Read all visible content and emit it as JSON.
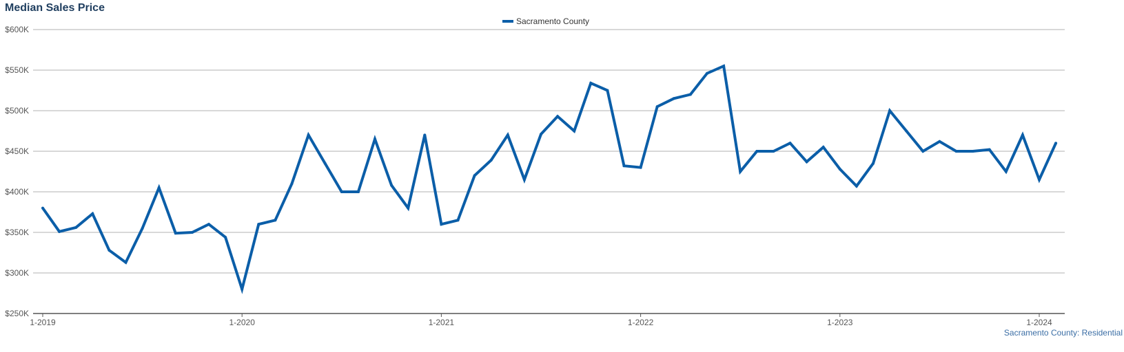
{
  "chart_data": {
    "type": "line",
    "title": "Median Sales Price",
    "xlabel": "",
    "ylabel": "",
    "x_start": "2019-01",
    "x_ticks": [
      "1-2019",
      "1-2020",
      "1-2021",
      "1-2022",
      "1-2023",
      "1-2024"
    ],
    "y_ticks": [
      "$250K",
      "$300K",
      "$350K",
      "$400K",
      "$450K",
      "$500K",
      "$550K",
      "$600K"
    ],
    "ylim": [
      250000,
      600000
    ],
    "grid": true,
    "legend_position": "top-center",
    "series": [
      {
        "name": "Sacramento County",
        "color": "#0b5ea8",
        "x": [
          "2019-01",
          "2019-02",
          "2019-03",
          "2019-04",
          "2019-05",
          "2019-06",
          "2019-07",
          "2019-08",
          "2019-09",
          "2019-10",
          "2019-11",
          "2019-12",
          "2020-01",
          "2020-02",
          "2020-03",
          "2020-04",
          "2020-05",
          "2020-06",
          "2020-07",
          "2020-08",
          "2020-09",
          "2020-10",
          "2020-11",
          "2020-12",
          "2021-01",
          "2021-02",
          "2021-03",
          "2021-04",
          "2021-05",
          "2021-06",
          "2021-07",
          "2021-08",
          "2021-09",
          "2021-10",
          "2021-11",
          "2021-12",
          "2022-01",
          "2022-02",
          "2022-03",
          "2022-04",
          "2022-05",
          "2022-06",
          "2022-07",
          "2022-08",
          "2022-09",
          "2022-10",
          "2022-11",
          "2022-12",
          "2023-01",
          "2023-02",
          "2023-03",
          "2023-04",
          "2023-05",
          "2023-06",
          "2023-07",
          "2023-08",
          "2023-09",
          "2023-10",
          "2023-11",
          "2023-12",
          "2024-01",
          "2024-02"
        ],
        "values": [
          380000,
          351000,
          356000,
          373000,
          328000,
          313000,
          355000,
          405000,
          349000,
          350000,
          360000,
          344000,
          280000,
          360000,
          365000,
          410000,
          470000,
          435000,
          400000,
          400000,
          465000,
          408000,
          380000,
          470000,
          360000,
          365000,
          420000,
          439000,
          470000,
          415000,
          471000,
          493000,
          475000,
          534000,
          525000,
          432000,
          430000,
          505000,
          515000,
          520000,
          546000,
          555000,
          425000,
          450000,
          450000,
          460000,
          437000,
          455000,
          428000,
          407000,
          435000,
          500000,
          475000,
          450000,
          462000,
          450000,
          450000,
          452000,
          425000,
          470000,
          415000,
          460000
        ]
      }
    ],
    "source_note": "Sacramento County: Residential"
  }
}
